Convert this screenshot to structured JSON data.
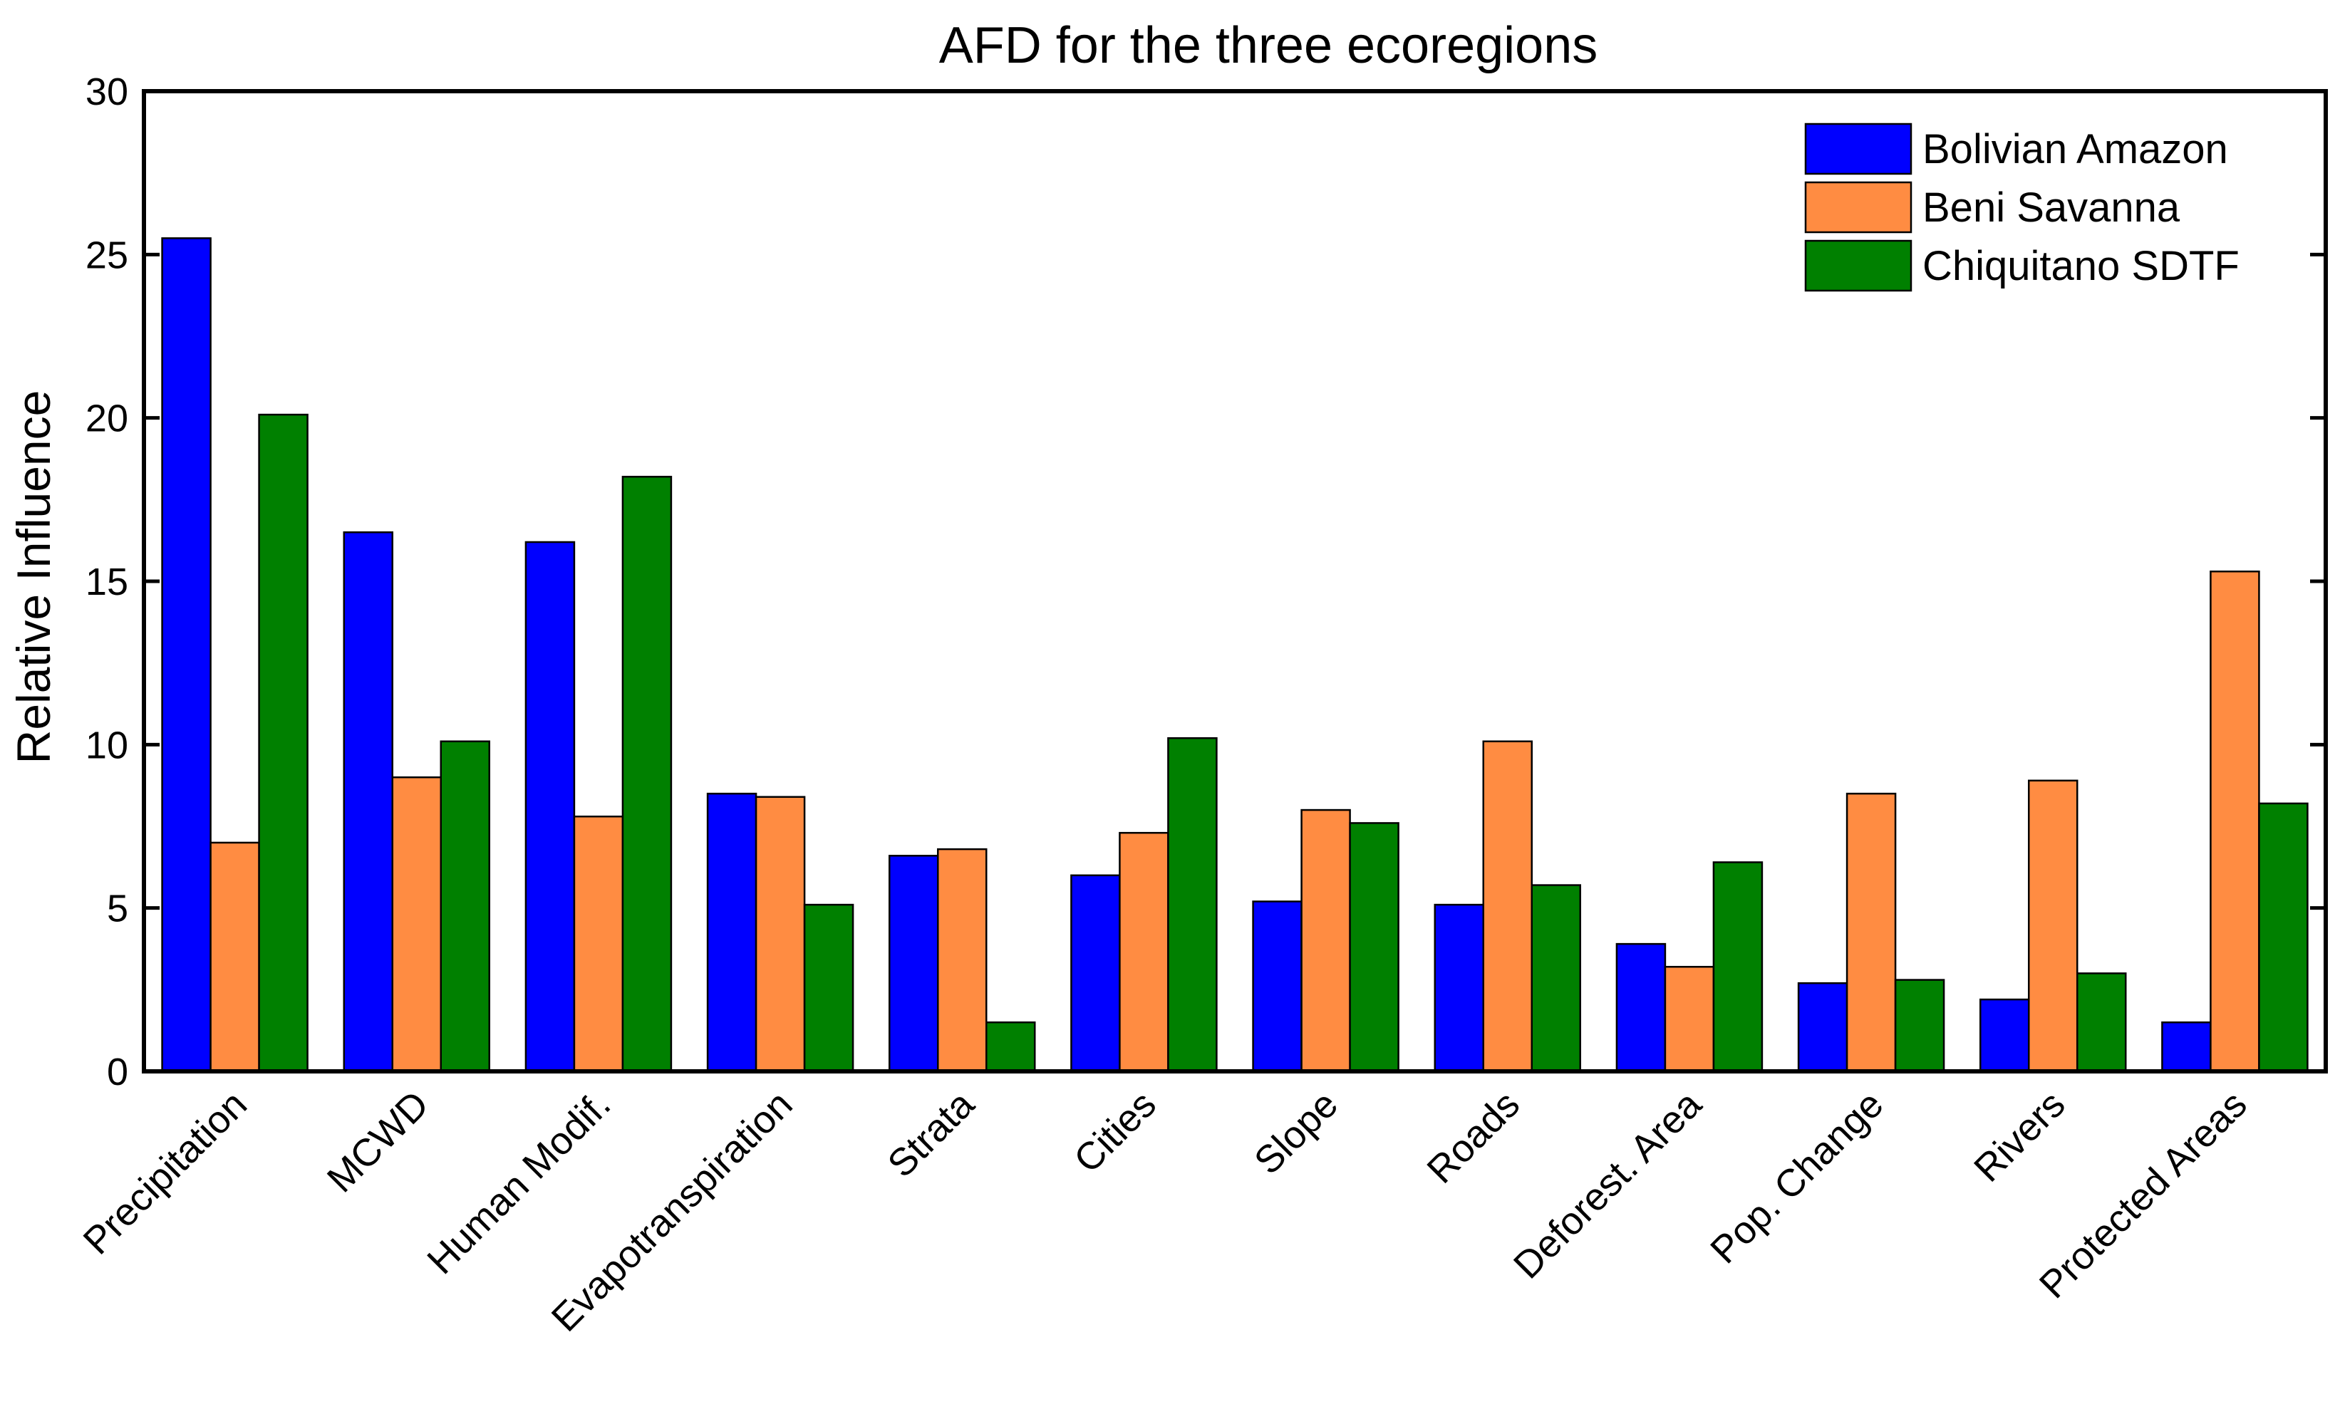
{
  "chart_data": {
    "type": "bar",
    "title": "AFD for the three ecoregions",
    "xlabel": "",
    "ylabel": "Relative Influence",
    "ylim": [
      0,
      30
    ],
    "yticks": [
      0,
      5,
      10,
      15,
      20,
      25,
      30
    ],
    "grid": false,
    "legend_position": "top-right",
    "categories": [
      "Precipitation",
      "MCWD",
      "Human Modif.",
      "Evapotranspiration",
      "Strata",
      "Cities",
      "Slope",
      "Roads",
      "Deforest. Area",
      "Pop. Change",
      "Rivers",
      "Protected Areas"
    ],
    "series": [
      {
        "name": "Bolivian Amazon",
        "color": "#0000FF",
        "values": [
          25.5,
          16.5,
          16.2,
          8.5,
          6.6,
          6.0,
          5.2,
          5.1,
          3.9,
          2.7,
          2.2,
          1.5
        ]
      },
      {
        "name": "Beni Savanna",
        "color": "#FF8C42",
        "values": [
          7.0,
          9.0,
          7.8,
          8.4,
          6.8,
          7.3,
          8.0,
          10.1,
          3.2,
          8.5,
          8.9,
          15.3
        ]
      },
      {
        "name": "Chiquitano SDTF",
        "color": "#008000",
        "values": [
          20.1,
          10.1,
          18.2,
          5.1,
          1.5,
          10.2,
          7.6,
          5.7,
          6.4,
          2.8,
          3.0,
          8.2
        ]
      }
    ]
  }
}
